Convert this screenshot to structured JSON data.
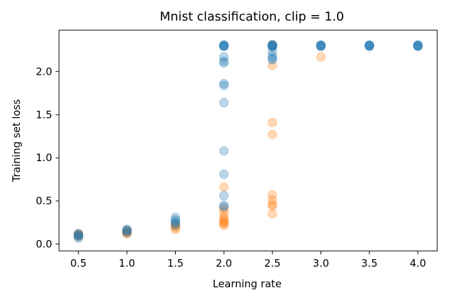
{
  "chart_data": {
    "type": "scatter",
    "title": "Mnist classification, clip = 1.0",
    "xlabel": "Learning rate",
    "ylabel": "Training set loss",
    "xlim": [
      0.3,
      4.2
    ],
    "ylim": [
      -0.08,
      2.48
    ],
    "xticks": [
      0.5,
      1.0,
      1.5,
      2.0,
      2.5,
      3.0,
      3.5,
      4.0
    ],
    "yticks": [
      0.0,
      0.5,
      1.0,
      1.5,
      2.0
    ],
    "tick_format_decimals": 1,
    "grid": false,
    "legend": null,
    "series": [
      {
        "name": "series-orange",
        "color": "#ff7f0e",
        "opacity": 0.3,
        "points": [
          [
            0.5,
            0.11
          ],
          [
            0.5,
            0.1
          ],
          [
            0.5,
            0.09
          ],
          [
            0.5,
            0.12
          ],
          [
            1.0,
            0.12
          ],
          [
            1.0,
            0.14
          ],
          [
            1.0,
            0.16
          ],
          [
            1.0,
            0.13
          ],
          [
            1.5,
            0.17
          ],
          [
            1.5,
            0.19
          ],
          [
            1.5,
            0.21
          ],
          [
            1.5,
            0.23
          ],
          [
            2.0,
            0.66
          ],
          [
            2.0,
            0.41
          ],
          [
            2.0,
            0.37
          ],
          [
            2.0,
            0.32
          ],
          [
            2.0,
            0.29
          ],
          [
            2.0,
            0.27
          ],
          [
            2.0,
            0.25
          ],
          [
            2.0,
            0.23
          ],
          [
            2.0,
            0.22
          ],
          [
            2.5,
            2.31
          ],
          [
            2.5,
            2.07
          ],
          [
            2.5,
            1.41
          ],
          [
            2.5,
            1.27
          ],
          [
            2.5,
            0.57
          ],
          [
            2.5,
            0.51
          ],
          [
            2.5,
            0.46
          ],
          [
            2.5,
            0.44
          ],
          [
            2.5,
            0.35
          ],
          [
            3.0,
            2.17
          ]
        ]
      },
      {
        "name": "series-blue",
        "color": "#1f77b4",
        "opacity": 0.3,
        "points": [
          [
            0.5,
            0.07
          ],
          [
            0.5,
            0.09
          ],
          [
            0.5,
            0.1
          ],
          [
            0.5,
            0.11
          ],
          [
            0.5,
            0.12
          ],
          [
            1.0,
            0.13
          ],
          [
            1.0,
            0.15
          ],
          [
            1.0,
            0.16
          ],
          [
            1.0,
            0.17
          ],
          [
            1.5,
            0.22
          ],
          [
            1.5,
            0.24
          ],
          [
            1.5,
            0.26
          ],
          [
            1.5,
            0.28
          ],
          [
            1.5,
            0.31
          ],
          [
            2.0,
            2.3
          ],
          [
            2.0,
            2.3
          ],
          [
            2.0,
            2.29
          ],
          [
            2.0,
            2.3
          ],
          [
            2.0,
            2.31
          ],
          [
            2.0,
            2.17
          ],
          [
            2.0,
            2.12
          ],
          [
            2.0,
            2.1
          ],
          [
            2.0,
            1.86
          ],
          [
            2.0,
            1.84
          ],
          [
            2.0,
            1.64
          ],
          [
            2.0,
            1.08
          ],
          [
            2.0,
            0.81
          ],
          [
            2.0,
            0.56
          ],
          [
            2.0,
            0.45
          ],
          [
            2.0,
            0.43
          ],
          [
            2.5,
            2.3
          ],
          [
            2.5,
            2.31
          ],
          [
            2.5,
            2.29
          ],
          [
            2.5,
            2.3
          ],
          [
            2.5,
            2.31
          ],
          [
            2.5,
            2.29
          ],
          [
            2.5,
            2.23
          ],
          [
            2.5,
            2.18
          ],
          [
            2.5,
            2.15
          ],
          [
            2.5,
            2.14
          ],
          [
            3.0,
            2.3
          ],
          [
            3.0,
            2.3
          ],
          [
            3.0,
            2.31
          ],
          [
            3.0,
            2.3
          ],
          [
            3.0,
            2.29
          ],
          [
            3.5,
            2.3
          ],
          [
            3.5,
            2.3
          ],
          [
            3.5,
            2.31
          ],
          [
            3.5,
            2.3
          ],
          [
            3.5,
            2.29
          ],
          [
            4.0,
            2.3
          ],
          [
            4.0,
            2.3
          ],
          [
            4.0,
            2.31
          ],
          [
            4.0,
            2.3
          ],
          [
            4.0,
            2.29
          ]
        ]
      }
    ]
  }
}
